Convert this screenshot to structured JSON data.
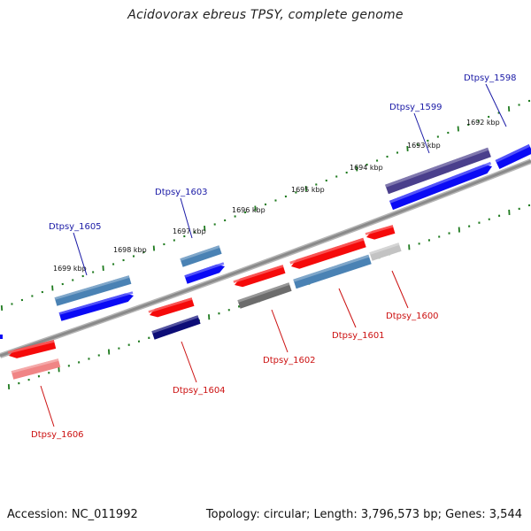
{
  "title": "Acidovorax ebreus TPSY, complete genome",
  "footer": {
    "accession": "Accession: NC_011992",
    "summary": "Topology: circular; Length: 3,796,573 bp; Genes: 3,544"
  },
  "colors": {
    "backbone": "#8a8a8a",
    "tick": "#1e7a1e",
    "forward_label": "#1a1aa6",
    "reverse_label": "#cc1111"
  },
  "kbp_labels": [
    "1692 kbp",
    "1693 kbp",
    "1694 kbp",
    "1695 kbp",
    "1696 kbp",
    "1697 kbp",
    "1698 kbp",
    "1699 kbp"
  ],
  "genes": [
    {
      "label": "Dtpsy_1598",
      "strand": "forward",
      "color": "#0a0af5"
    },
    {
      "label": "Dtpsy_1599",
      "strand": "forward",
      "color": "#4a3f8c"
    },
    {
      "label": "Dtpsy_1600",
      "strand": "reverse",
      "color": "#f50a0a"
    },
    {
      "label": "Dtpsy_1601",
      "strand": "reverse",
      "color": "#f50a0a"
    },
    {
      "label": "Dtpsy_1602",
      "strand": "reverse",
      "color": "#f50a0a"
    },
    {
      "label": "Dtpsy_1603",
      "strand": "forward",
      "color": "#4a82b4"
    },
    {
      "label": "Dtpsy_1604",
      "strand": "reverse",
      "color": "#f50a0a"
    },
    {
      "label": "Dtpsy_1605",
      "strand": "forward",
      "color": "#4a82b4"
    },
    {
      "label": "Dtpsy_1606",
      "strand": "reverse",
      "color": "#f50a0a"
    }
  ]
}
